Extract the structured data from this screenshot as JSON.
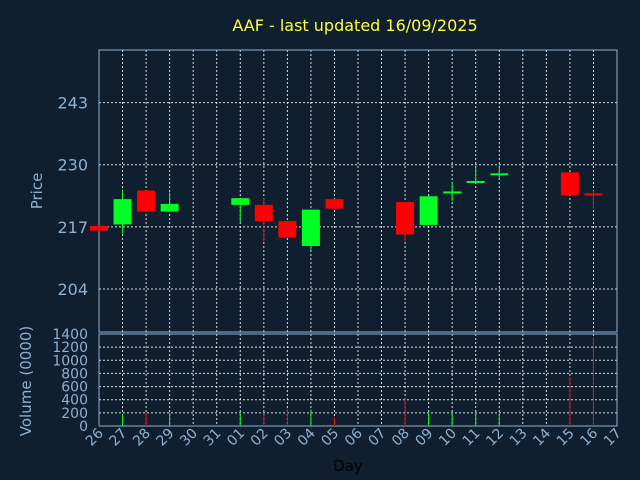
{
  "chart_data": {
    "type": "candlestick",
    "title": "AAF - last updated 16/09/2025",
    "xlabel": "Day",
    "price_panel": {
      "ylabel": "Price",
      "ylim": [
        195,
        254
      ],
      "yticks": [
        204,
        217,
        230,
        243
      ]
    },
    "volume_panel": {
      "ylabel": "Volume (0000)",
      "ylim": [
        0,
        1400
      ],
      "yticks": [
        0,
        200,
        400,
        600,
        800,
        1000,
        1200,
        1400
      ]
    },
    "x_tick_labels": [
      "26",
      "27",
      "28",
      "29",
      "30",
      "31",
      "01",
      "02",
      "03",
      "04",
      "05",
      "06",
      "07",
      "08",
      "09",
      "10",
      "11",
      "12",
      "13",
      "14",
      "15",
      "16",
      "17"
    ],
    "candles": [
      {
        "day": "26",
        "open": 217.2,
        "close": 216.2,
        "high": 217.2,
        "low": 216.2,
        "volume": 0,
        "color": "red"
      },
      {
        "day": "27",
        "open": 217.5,
        "close": 222.8,
        "high": 224.8,
        "low": 215.6,
        "volume": 180,
        "color": "green"
      },
      {
        "day": "28",
        "open": 224.6,
        "close": 220.2,
        "high": 224.6,
        "low": 220.2,
        "volume": 200,
        "color": "red"
      },
      {
        "day": "29",
        "open": 220.2,
        "close": 221.8,
        "high": 224.2,
        "low": 220.2,
        "volume": 200,
        "color": "green"
      },
      {
        "day": "01",
        "open": 221.6,
        "close": 223.0,
        "high": 223.0,
        "low": 218.0,
        "volume": 180,
        "color": "green"
      },
      {
        "day": "02",
        "open": 221.6,
        "close": 218.2,
        "high": 223.0,
        "low": 213.8,
        "volume": 180,
        "color": "red"
      },
      {
        "day": "03",
        "open": 218.2,
        "close": 214.8,
        "high": 218.2,
        "low": 214.8,
        "volume": 260,
        "color": "red"
      },
      {
        "day": "04",
        "open": 213.0,
        "close": 220.6,
        "high": 220.6,
        "low": 212.2,
        "volume": 250,
        "color": "green"
      },
      {
        "day": "05",
        "open": 222.8,
        "close": 220.8,
        "high": 222.8,
        "low": 220.8,
        "volume": 130,
        "color": "red"
      },
      {
        "day": "08",
        "open": 222.2,
        "close": 215.4,
        "high": 222.2,
        "low": 214.0,
        "volume": 420,
        "color": "red"
      },
      {
        "day": "09",
        "open": 217.4,
        "close": 223.4,
        "high": 223.4,
        "low": 217.4,
        "volume": 210,
        "color": "green"
      },
      {
        "day": "10",
        "open": 224.2,
        "close": 224.4,
        "high": 226.4,
        "low": 222.4,
        "volume": 200,
        "color": "green"
      },
      {
        "day": "11",
        "open": 226.4,
        "close": 226.6,
        "high": 229.4,
        "low": 226.2,
        "volume": 200,
        "color": "green"
      },
      {
        "day": "12",
        "open": 228.0,
        "close": 228.2,
        "high": 229.6,
        "low": 227.2,
        "volume": 180,
        "color": "green"
      },
      {
        "day": "15",
        "open": 228.4,
        "close": 223.6,
        "high": 228.4,
        "low": 223.6,
        "volume": 750,
        "color": "red"
      },
      {
        "day": "16",
        "open": 224.0,
        "close": 223.8,
        "high": 224.6,
        "low": 220.8,
        "volume": 1350,
        "color": "red"
      }
    ],
    "colors": {
      "background": "#0f1f30",
      "up": "#00ff22",
      "down": "#ff0000",
      "title": "#ffff33",
      "axis_text": "#8fb0d0",
      "grid": "#ffffff"
    },
    "grid": true
  }
}
